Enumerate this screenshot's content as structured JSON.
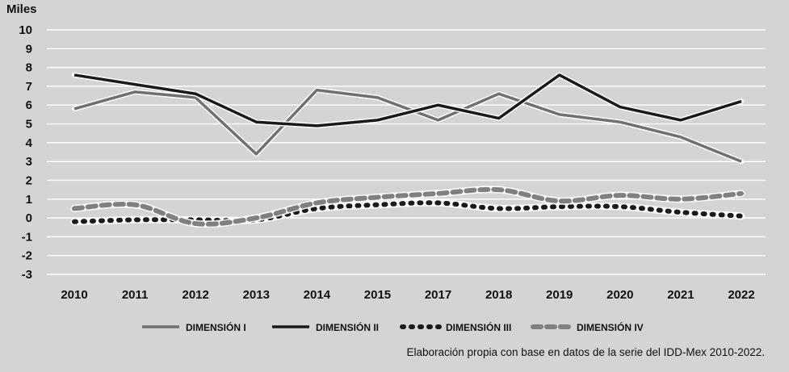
{
  "chart_data": {
    "type": "line",
    "ylabel": "Miles",
    "x": [
      "2010",
      "2011",
      "2012",
      "2013",
      "2014",
      "2015",
      "2017",
      "2018",
      "2019",
      "2020",
      "2021",
      "2022"
    ],
    "ylim": [
      -3,
      10
    ],
    "yticks": [
      10,
      9,
      8,
      7,
      6,
      5,
      4,
      3,
      2,
      1,
      0,
      -1,
      -2,
      -3
    ],
    "ytick_labels": [
      "10",
      "9",
      "8",
      "7",
      "6",
      "5",
      "4",
      "3",
      "2",
      "1",
      "0",
      "-1",
      "-2",
      "-3"
    ],
    "grid": true,
    "legend_position": "bottom",
    "series": [
      {
        "name": "DIMENSIÓN I",
        "style": "solid-gray",
        "color": "#707070",
        "values": [
          5.8,
          6.7,
          6.4,
          3.4,
          6.8,
          6.4,
          5.2,
          6.6,
          5.5,
          5.1,
          4.3,
          3.0
        ]
      },
      {
        "name": "DIMENSIÓN II",
        "style": "solid-black",
        "color": "#1a1a1a",
        "values": [
          7.6,
          7.1,
          6.6,
          5.1,
          4.9,
          5.2,
          6.0,
          5.3,
          7.6,
          5.9,
          5.2,
          6.2
        ]
      },
      {
        "name": "DIMENSIÓN III",
        "style": "dotted-black",
        "color": "#1a1a1a",
        "values": [
          -0.2,
          -0.1,
          -0.1,
          -0.1,
          0.5,
          0.7,
          0.8,
          0.5,
          0.6,
          0.6,
          0.3,
          0.1
        ]
      },
      {
        "name": "DIMENSIÓN IV",
        "style": "dashed-gray",
        "color": "#808080",
        "values": [
          0.5,
          0.7,
          -0.3,
          0.0,
          0.8,
          1.1,
          1.3,
          1.5,
          0.9,
          1.2,
          1.0,
          1.3
        ]
      }
    ],
    "note": "Elaboración propia con base en datos de la serie del IDD-Mex 2010-2022."
  }
}
